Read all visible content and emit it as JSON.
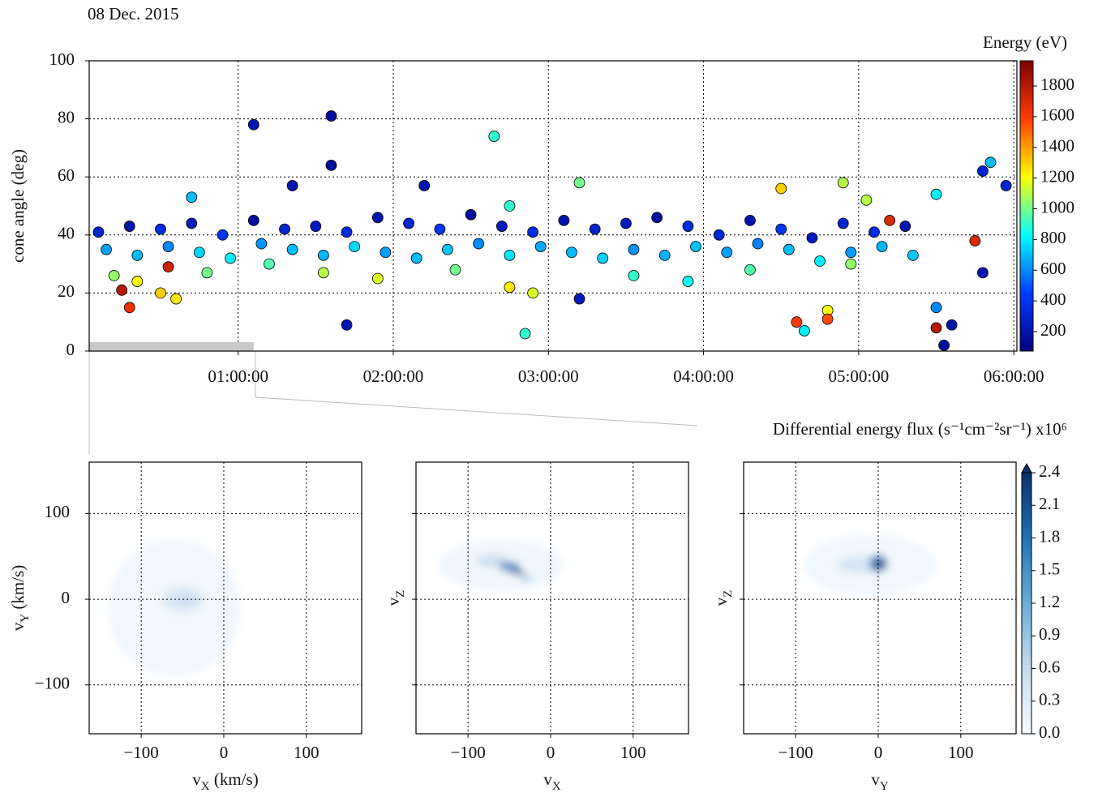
{
  "chart_data": [
    {
      "type": "scatter",
      "title": "08 Dec. 2015",
      "ylabel": "cone angle (deg)",
      "xlim": [
        0.04,
        6.02
      ],
      "ylim": [
        0,
        100
      ],
      "xticks": [
        {
          "value": 1,
          "label": "01:00:00"
        },
        {
          "value": 2,
          "label": "02:00:00"
        },
        {
          "value": 3,
          "label": "03:00:00"
        },
        {
          "value": 4,
          "label": "04:00:00"
        },
        {
          "value": 5,
          "label": "05:00:00"
        },
        {
          "value": 6,
          "label": "06:00:00"
        }
      ],
      "yticks": [
        0,
        20,
        40,
        60,
        80,
        100
      ],
      "grid": true,
      "x": [
        0.1,
        0.3,
        0.5,
        0.7,
        0.9,
        1.1,
        1.3,
        1.5,
        1.7,
        1.9,
        2.1,
        2.3,
        2.5,
        2.7,
        2.9,
        3.1,
        3.3,
        3.5,
        3.7,
        3.9,
        4.1,
        4.3,
        4.5,
        4.7,
        4.9,
        5.1,
        5.3,
        0.15,
        0.35,
        0.55,
        0.75,
        0.95,
        1.15,
        1.35,
        1.55,
        1.75,
        1.95,
        2.15,
        2.35,
        2.55,
        2.75,
        2.95,
        3.15,
        3.35,
        3.55,
        3.75,
        3.95,
        4.15,
        4.35,
        4.55,
        4.75,
        4.95,
        5.15,
        5.35,
        0.2,
        0.35,
        0.5,
        0.6,
        0.8,
        1.2,
        1.55,
        1.9,
        2.4,
        2.75,
        2.9,
        3.55,
        3.9,
        4.3,
        4.8,
        4.95,
        1.1,
        1.6,
        1.6,
        1.7,
        2.65,
        2.85,
        3.2,
        0.3,
        0.25,
        0.55,
        4.6,
        4.65,
        4.8,
        5.5,
        5.55,
        5.6,
        5.75,
        5.8,
        5.85,
        5.95,
        5.8,
        5.5,
        5.5,
        5.2,
        4.5,
        4.9,
        5.05,
        2.75,
        3.2,
        0.7,
        1.35,
        2.2
      ],
      "values": [
        41,
        43,
        42,
        44,
        40,
        45,
        42,
        43,
        41,
        46,
        44,
        42,
        47,
        43,
        41,
        45,
        42,
        44,
        46,
        43,
        40,
        45,
        42,
        39,
        44,
        41,
        43,
        35,
        33,
        36,
        34,
        32,
        37,
        35,
        33,
        36,
        34,
        32,
        35,
        37,
        33,
        36,
        34,
        32,
        35,
        33,
        36,
        34,
        37,
        35,
        31,
        34,
        36,
        33,
        26,
        24,
        20,
        18,
        27,
        30,
        27,
        25,
        28,
        22,
        20,
        26,
        24,
        28,
        14,
        30,
        78,
        81,
        64,
        9,
        74,
        6,
        18,
        15,
        21,
        29,
        10,
        7,
        11,
        8,
        2,
        9,
        38,
        62,
        65,
        57,
        27,
        15,
        54,
        45,
        56,
        58,
        52,
        50,
        58,
        53,
        57,
        57
      ],
      "color_values": [
        300,
        200,
        350,
        250,
        400,
        150,
        300,
        250,
        350,
        200,
        300,
        400,
        150,
        250,
        350,
        200,
        300,
        250,
        150,
        350,
        300,
        200,
        400,
        250,
        300,
        350,
        200,
        650,
        700,
        600,
        750,
        800,
        620,
        700,
        680,
        760,
        640,
        700,
        720,
        610,
        780,
        660,
        700,
        740,
        620,
        680,
        710,
        650,
        590,
        700,
        800,
        640,
        690,
        720,
        1050,
        1200,
        1300,
        1250,
        1000,
        950,
        1100,
        1150,
        1000,
        1250,
        1150,
        900,
        850,
        950,
        1200,
        1050,
        200,
        150,
        150,
        200,
        900,
        900,
        250,
        1650,
        1800,
        1750,
        1600,
        800,
        1550,
        1800,
        150,
        200,
        1700,
        300,
        700,
        300,
        200,
        600,
        800,
        1700,
        1300,
        1100,
        1100,
        900,
        1000,
        700,
        200,
        200
      ],
      "colorbar": {
        "label": "Energy (eV)",
        "lim": [
          73,
          1964
        ],
        "ticks": [
          200,
          400,
          600,
          800,
          1000,
          1200,
          1400,
          1600,
          1800
        ],
        "colormap": "jet"
      },
      "selected_range": [
        0.04,
        1.1
      ]
    },
    {
      "type": "density",
      "xlabel": [
        "v",
        "X",
        " (km/s)"
      ],
      "ylabel": [
        "v",
        "Y",
        " (km/s)"
      ],
      "xlim": [
        -163,
        167
      ],
      "ylim": [
        -157,
        160
      ],
      "xticks": [
        {
          "value": -100,
          "label": "−100"
        },
        0,
        100
      ],
      "yticks": [
        {
          "value": -100,
          "label": "−100"
        },
        0,
        100
      ],
      "ytick_labels": true,
      "grid": true,
      "blobs": [
        {
          "x": -60,
          "y": -10,
          "width": 160,
          "height": 160,
          "value": 0.08
        },
        {
          "x": -50,
          "y": 0,
          "width": 50,
          "height": 28,
          "value": 0.35
        },
        {
          "x": -45,
          "y": 0,
          "width": 22,
          "height": 12,
          "value": 0.6
        }
      ]
    },
    {
      "type": "density",
      "xlabel": [
        "v",
        "X"
      ],
      "ylabel": [
        "v",
        "Z"
      ],
      "xlim": [
        -163,
        167
      ],
      "ylim": [
        -157,
        160
      ],
      "xticks": [
        {
          "value": -100,
          "label": "−100"
        },
        0,
        100
      ],
      "yticks": [
        -100,
        0,
        100
      ],
      "ytick_labels": false,
      "grid": true,
      "blobs": [
        {
          "x": -60,
          "y": 40,
          "width": 150,
          "height": 60,
          "value": 0.1
        },
        {
          "x": -70,
          "y": 45,
          "width": 40,
          "height": 12,
          "value": 0.6
        },
        {
          "x": -50,
          "y": 38,
          "width": 25,
          "height": 10,
          "value": 1.6
        },
        {
          "x": -40,
          "y": 32,
          "width": 14,
          "height": 7,
          "value": 2.1
        },
        {
          "x": -30,
          "y": 25,
          "width": 10,
          "height": 6,
          "value": 1.4
        }
      ]
    },
    {
      "type": "density",
      "xlabel": [
        "v",
        "Y"
      ],
      "ylabel": [
        "v",
        "Z"
      ],
      "xlim": [
        -163,
        167
      ],
      "ylim": [
        -157,
        160
      ],
      "xticks": [
        {
          "value": -100,
          "label": "−100"
        },
        0,
        100
      ],
      "yticks": [
        -100,
        0,
        100
      ],
      "ytick_labels": false,
      "grid": true,
      "blobs": [
        {
          "x": -10,
          "y": 40,
          "width": 160,
          "height": 70,
          "value": 0.08
        },
        {
          "x": -20,
          "y": 40,
          "width": 60,
          "height": 20,
          "value": 0.4
        },
        {
          "x": 0,
          "y": 42,
          "width": 22,
          "height": 20,
          "value": 1.5
        },
        {
          "x": 2,
          "y": 40,
          "width": 14,
          "height": 12,
          "value": 2.3
        }
      ],
      "colorbar": {
        "label": "Differential energy flux (s⁻¹cm⁻²sr⁻¹) x10⁶",
        "lim": [
          0,
          2.4
        ],
        "ticks": [
          {
            "value": 0,
            "label": "0.0"
          },
          0.3,
          0.6,
          0.9,
          1.2,
          1.5,
          1.8,
          2.1,
          2.4
        ],
        "colormap": "blues",
        "extend": true
      }
    }
  ]
}
